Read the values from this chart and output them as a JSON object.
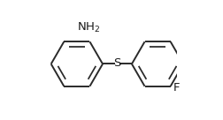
{
  "background_color": "#ffffff",
  "line_color": "#2a2a2a",
  "line_width": 1.4,
  "text_color": "#1a1a1a",
  "nh2_label": "NH$_2$",
  "s_label": "S",
  "f_label": "F",
  "nh2_fontsize": 9.5,
  "s_fontsize": 9.5,
  "f_fontsize": 9.5,
  "figsize": [
    2.53,
    1.36
  ],
  "dpi": 100
}
